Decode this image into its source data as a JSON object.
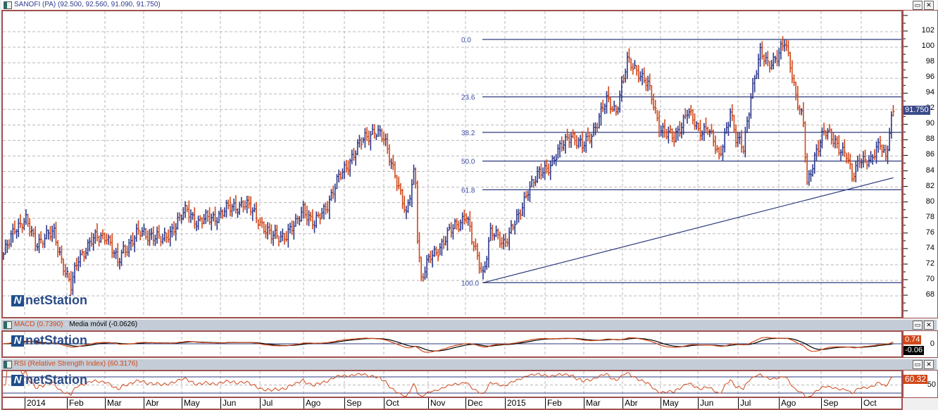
{
  "main": {
    "title": "SANOFI (PA) (92.500, 92.560, 91.090, 91.750)",
    "last_price_label": "91.750",
    "logo": "netStation",
    "fib_labels": [
      "0.0",
      "23.6",
      "38.2",
      "50.0",
      "61.8",
      "100.0"
    ]
  },
  "macd": {
    "title": "MACD (0.7390)",
    "sep": " - ",
    "signal_title": "Media móvil (-0.0626)",
    "value_label": "0.74",
    "signal_label": "-0.06",
    "axis_label": "0",
    "logo": "netStation"
  },
  "rsi": {
    "title": "RSI (Relative Strength Index) (60.3176)",
    "value_label": "60.32",
    "axis_label": "50",
    "logo": "netStation"
  },
  "window_buttons": {
    "restore": "▭",
    "close": "✕"
  },
  "colors": {
    "up": "#2e3a8c",
    "down": "#d0481a",
    "fib": "#2e3a7c",
    "macd": "#d0481a",
    "signal": "#000000",
    "rsi": "#d0481a"
  },
  "chart_data": {
    "type": "ohlc",
    "symbol": "SANOFI (PA)",
    "last_bar": {
      "open": 92.5,
      "high": 92.56,
      "low": 91.09,
      "close": 91.75
    },
    "ylim": [
      66,
      104
    ],
    "yticks": [
      68,
      70,
      72,
      74,
      76,
      78,
      80,
      82,
      84,
      86,
      88,
      90,
      92,
      94,
      96,
      98,
      100,
      102
    ],
    "xticks": [
      "2014",
      "Feb",
      "Mar",
      "Abr",
      "May",
      "Jun",
      "Jul",
      "Ago",
      "Sep",
      "Oct",
      "Nov",
      "Dec",
      "2015",
      "Feb",
      "Mar",
      "Abr",
      "May",
      "Jun",
      "Jul",
      "Ago",
      "Sep",
      "Oct"
    ],
    "trading_days": 476,
    "close_keypoints": [
      [
        0,
        73
      ],
      [
        6,
        77
      ],
      [
        12,
        77.5
      ],
      [
        17,
        75
      ],
      [
        27,
        76
      ],
      [
        32,
        72
      ],
      [
        36,
        69
      ],
      [
        40,
        73
      ],
      [
        47,
        75
      ],
      [
        55,
        76
      ],
      [
        61,
        72
      ],
      [
        64,
        74
      ],
      [
        72,
        76
      ],
      [
        79,
        76
      ],
      [
        85,
        75
      ],
      [
        91,
        77
      ],
      [
        98,
        79
      ],
      [
        104,
        77.5
      ],
      [
        111,
        78
      ],
      [
        119,
        79
      ],
      [
        128,
        80
      ],
      [
        136,
        78
      ],
      [
        143,
        75.5
      ],
      [
        151,
        76
      ],
      [
        156,
        77
      ],
      [
        160,
        79.5
      ],
      [
        166,
        77
      ],
      [
        173,
        80
      ],
      [
        179,
        83
      ],
      [
        186,
        86
      ],
      [
        192,
        88
      ],
      [
        198,
        89.5
      ],
      [
        203,
        88
      ],
      [
        209,
        84
      ],
      [
        215,
        78
      ],
      [
        219,
        84
      ],
      [
        220,
        83
      ],
      [
        221,
        76
      ],
      [
        223,
        70
      ],
      [
        228,
        73
      ],
      [
        235,
        75
      ],
      [
        241,
        77
      ],
      [
        247,
        78.5
      ],
      [
        250,
        75
      ],
      [
        256,
        71
      ],
      [
        260,
        76
      ],
      [
        267,
        75
      ],
      [
        275,
        78
      ],
      [
        280,
        82
      ],
      [
        288,
        84
      ],
      [
        295,
        86
      ],
      [
        303,
        89
      ],
      [
        309,
        87
      ],
      [
        314,
        89
      ],
      [
        322,
        93
      ],
      [
        327,
        92
      ],
      [
        333,
        98
      ],
      [
        339,
        97
      ],
      [
        344,
        95
      ],
      [
        350,
        90
      ],
      [
        358,
        88
      ],
      [
        365,
        92
      ],
      [
        371,
        89
      ],
      [
        376,
        90
      ],
      [
        382,
        85.5
      ],
      [
        388,
        92
      ],
      [
        391,
        88
      ],
      [
        395,
        87
      ],
      [
        399,
        94
      ],
      [
        404,
        99
      ],
      [
        408,
        98
      ],
      [
        414,
        99
      ],
      [
        417,
        100.5
      ],
      [
        420,
        98
      ],
      [
        423,
        94
      ],
      [
        427,
        90
      ],
      [
        429,
        82
      ],
      [
        431,
        84
      ],
      [
        434,
        87
      ],
      [
        438,
        89
      ],
      [
        444,
        88
      ],
      [
        450,
        86
      ],
      [
        453,
        83
      ],
      [
        457,
        86
      ],
      [
        463,
        85
      ],
      [
        468,
        88
      ],
      [
        471,
        86
      ],
      [
        475,
        91.75
      ]
    ],
    "fibonacci": {
      "high": 101.0,
      "low": 69.7,
      "levels": [
        0.0,
        23.6,
        38.2,
        50.0,
        61.8,
        100.0
      ]
    },
    "trendline": {
      "start": [
        256,
        69.7
      ],
      "end": [
        475,
        83.2
      ]
    },
    "indicators": {
      "macd": 0.739,
      "macd_signal": -0.0626,
      "rsi": 60.3176,
      "rsi_bands": [
        30,
        50,
        70
      ]
    }
  }
}
